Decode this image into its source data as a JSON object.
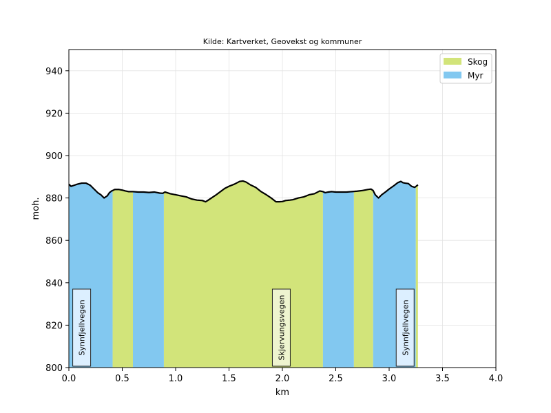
{
  "chart_data": {
    "type": "area",
    "title": "Kilde: Kartverket, Geovekst og kommuner",
    "xlabel": "km",
    "ylabel": "moh.",
    "xlim": [
      0,
      4
    ],
    "ylim": [
      800,
      950
    ],
    "xticks": [
      0,
      0.5,
      1,
      1.5,
      2,
      2.5,
      3,
      3.5,
      4
    ],
    "xtick_labels": [
      "0.0",
      "0.5",
      "1.0",
      "1.5",
      "2.0",
      "2.5",
      "3.0",
      "3.5",
      "4.0"
    ],
    "yticks": [
      800,
      820,
      840,
      860,
      880,
      900,
      920,
      940
    ],
    "ytick_labels": [
      "800",
      "820",
      "840",
      "860",
      "880",
      "900",
      "920",
      "940"
    ],
    "grid": true,
    "legend_position": "top-right",
    "colors": {
      "Skog": "#d2e47a",
      "Myr": "#82c8f0",
      "profile": "#000000"
    },
    "legend": [
      {
        "name": "Skog",
        "color": "#d2e47a"
      },
      {
        "name": "Myr",
        "color": "#82c8f0"
      }
    ],
    "land_cover_segments": [
      {
        "type": "Myr",
        "start": 0.0,
        "end": 0.41
      },
      {
        "type": "Skog",
        "start": 0.41,
        "end": 0.6
      },
      {
        "type": "Myr",
        "start": 0.6,
        "end": 0.89
      },
      {
        "type": "Skog",
        "start": 0.89,
        "end": 2.38
      },
      {
        "type": "Myr",
        "start": 2.38,
        "end": 2.67
      },
      {
        "type": "Skog",
        "start": 2.67,
        "end": 2.85
      },
      {
        "type": "Myr",
        "start": 2.85,
        "end": 3.25
      },
      {
        "type": "Skog",
        "start": 3.25,
        "end": 3.27
      }
    ],
    "elevation_profile": {
      "x": [
        0.0,
        0.02,
        0.05,
        0.08,
        0.12,
        0.16,
        0.2,
        0.23,
        0.27,
        0.3,
        0.33,
        0.36,
        0.38,
        0.4,
        0.41,
        0.43,
        0.45,
        0.47,
        0.5,
        0.53,
        0.56,
        0.6,
        0.65,
        0.7,
        0.75,
        0.8,
        0.85,
        0.88,
        0.9,
        0.95,
        1.0,
        1.05,
        1.1,
        1.15,
        1.2,
        1.25,
        1.28,
        1.3,
        1.33,
        1.38,
        1.42,
        1.46,
        1.5,
        1.55,
        1.6,
        1.63,
        1.66,
        1.7,
        1.75,
        1.8,
        1.85,
        1.9,
        1.94,
        1.97,
        2.0,
        2.03,
        2.07,
        2.1,
        2.15,
        2.2,
        2.25,
        2.3,
        2.35,
        2.38,
        2.4,
        2.43,
        2.46,
        2.5,
        2.55,
        2.6,
        2.65,
        2.7,
        2.75,
        2.8,
        2.83,
        2.85,
        2.87,
        2.9,
        2.93,
        2.97,
        3.0,
        3.05,
        3.08,
        3.11,
        3.13,
        3.15,
        3.18,
        3.21,
        3.24,
        3.27
      ],
      "y": [
        886.5,
        885.5,
        886.0,
        886.5,
        887.0,
        887.0,
        886.0,
        884.5,
        882.5,
        881.5,
        880.0,
        881.0,
        882.5,
        883.3,
        883.5,
        884.0,
        884.0,
        884.0,
        883.7,
        883.3,
        883.0,
        883.0,
        882.8,
        882.8,
        882.6,
        882.8,
        882.3,
        882.2,
        882.8,
        882.0,
        881.5,
        881.0,
        880.5,
        879.5,
        879.0,
        878.8,
        878.2,
        878.8,
        879.8,
        881.5,
        883.0,
        884.5,
        885.5,
        886.5,
        887.8,
        888.0,
        887.5,
        886.2,
        885.0,
        883.0,
        881.5,
        879.8,
        878.2,
        878.2,
        878.3,
        878.8,
        879.0,
        879.2,
        880.0,
        880.5,
        881.5,
        882.0,
        883.3,
        883.0,
        882.5,
        882.8,
        883.0,
        882.8,
        882.8,
        882.8,
        883.0,
        883.2,
        883.5,
        884.0,
        884.2,
        883.5,
        881.5,
        880.0,
        881.5,
        883.0,
        884.2,
        886.0,
        887.2,
        887.8,
        887.2,
        887.0,
        886.8,
        885.5,
        885.0,
        886.2
      ]
    },
    "road_labels": [
      {
        "text": "Synnfjellvegen",
        "x": 0.12
      },
      {
        "text": "Skjervungsvegen",
        "x": 1.99
      },
      {
        "text": "Synnfjellvegen",
        "x": 3.15
      }
    ]
  }
}
